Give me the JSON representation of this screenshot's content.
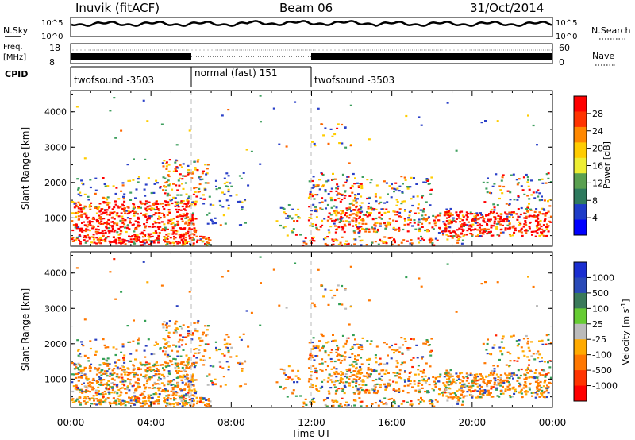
{
  "header": {
    "station": "Inuvik (fitACF)",
    "beam": "Beam 06",
    "date": "31/Oct/2014"
  },
  "strips": {
    "nsky_label": "N.Sky",
    "nsky_ticks": [
      "10^5",
      "10^0"
    ],
    "nsearch_label": "N.Search",
    "nsearch_ticks": [
      "10^5",
      "10^0"
    ],
    "freq_label": "Freq.",
    "freq_unit": "[MHz]",
    "freq_ticks": [
      "18",
      "8"
    ],
    "nave_label": "Nave",
    "nave_ticks": [
      "60",
      "0"
    ],
    "cpid_label": "CPID",
    "cpid_segments": [
      {
        "name": "twofsound -3503",
        "start": 0,
        "end": 6
      },
      {
        "name": "normal (fast) 151",
        "start": 6,
        "end": 12
      },
      {
        "name": "twofsound -3503",
        "start": 12,
        "end": 24
      }
    ]
  },
  "chart_data": [
    {
      "type": "heatmap",
      "name": "power",
      "ylabel": "Slant Range [km]",
      "x_range_hours": [
        0,
        24
      ],
      "ylim": [
        200,
        4600
      ],
      "y_ticks": [
        1000,
        2000,
        3000,
        4000
      ],
      "colorbar_label": "Power [dB]",
      "colorbar_ticks": [
        "28",
        "24",
        "20",
        "16",
        "12",
        "8",
        "4"
      ],
      "colorbar_colors": [
        "#ff0000",
        "#ff3300",
        "#ff8800",
        "#ffcc00",
        "#eeee33",
        "#5aa050",
        "#2e7a5e",
        "#1e3cc8",
        "#0000ff"
      ]
    },
    {
      "type": "heatmap",
      "name": "velocity",
      "ylabel": "Slant Range [km]",
      "xlabel": "Time UT",
      "x_range_hours": [
        0,
        24
      ],
      "x_ticks": [
        "00:00",
        "04:00",
        "08:00",
        "12:00",
        "16:00",
        "20:00",
        "00:00"
      ],
      "ylim": [
        200,
        4600
      ],
      "y_ticks": [
        1000,
        2000,
        3000,
        4000
      ],
      "colorbar_label": "Velocity [m s",
      "colorbar_label_sup": "-1",
      "colorbar_label_end": "]",
      "colorbar_ticks": [
        "1000",
        "500",
        "100",
        "25",
        "-25",
        "-100",
        "-500",
        "-1000"
      ],
      "colorbar_colors": [
        "#1a2ed0",
        "#2a4ab8",
        "#3a7a5a",
        "#66cc33",
        "#bbbbbb",
        "#ffaa00",
        "#ff7700",
        "#ff3300",
        "#ff0000"
      ]
    }
  ]
}
